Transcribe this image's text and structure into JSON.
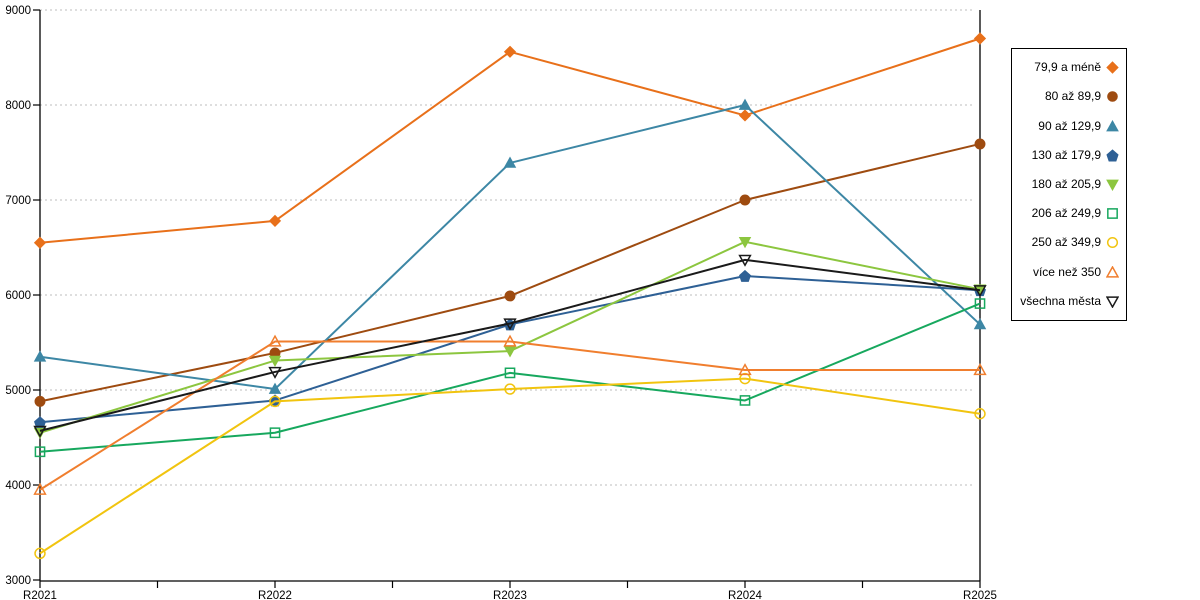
{
  "chart_data": {
    "type": "line",
    "title": "",
    "xlabel": "",
    "ylabel": "",
    "x_categories": [
      "R2021",
      "R2022",
      "R2023",
      "R2024",
      "R2025"
    ],
    "y_tick_labels": [
      "3000",
      "4000",
      "5000",
      "6000",
      "7000",
      "8000",
      "9000"
    ],
    "y_ticks": [
      3000,
      4000,
      5000,
      6000,
      7000,
      8000,
      9000
    ],
    "ylim": [
      3000,
      9000
    ],
    "grid": "horizontal-dotted",
    "legend_position": "right-outside",
    "series": [
      {
        "name": "79,9 a méně",
        "marker": "diamond",
        "filled": true,
        "color": "#E8701A",
        "values": [
          6550,
          6780,
          8560,
          7890,
          8700
        ]
      },
      {
        "name": "80 až 89,9",
        "marker": "circle",
        "filled": true,
        "color": "#9E4B10",
        "values": [
          4880,
          5390,
          5990,
          7000,
          7590
        ]
      },
      {
        "name": "90 až 129,9",
        "marker": "triangle-up",
        "filled": true,
        "color": "#3D87A5",
        "values": [
          5350,
          5010,
          7390,
          8000,
          5690
        ]
      },
      {
        "name": "130 až 179,9",
        "marker": "pentagon",
        "filled": true,
        "color": "#2E6095",
        "values": [
          4660,
          4890,
          5690,
          6200,
          6050
        ]
      },
      {
        "name": "180 až 205,9",
        "marker": "triangle-down",
        "filled": true,
        "color": "#8CC63F",
        "values": [
          4550,
          5310,
          5410,
          6560,
          6060
        ]
      },
      {
        "name": "206 až 249,9",
        "marker": "square",
        "filled": false,
        "color": "#17A85E",
        "values": [
          4350,
          4550,
          5180,
          4890,
          5910
        ]
      },
      {
        "name": "250 až 349,9",
        "marker": "circle",
        "filled": false,
        "color": "#F1C40F",
        "values": [
          3280,
          4880,
          5010,
          5120,
          4750
        ]
      },
      {
        "name": "více než 350",
        "marker": "triangle-up",
        "filled": false,
        "color": "#F07E2E",
        "values": [
          3950,
          5510,
          5510,
          5210,
          5210
        ]
      },
      {
        "name": "všechna města",
        "marker": "triangle-down",
        "filled": false,
        "color": "#1A1A1A",
        "values": [
          4570,
          5190,
          5700,
          6370,
          6050
        ]
      }
    ]
  },
  "colors": {
    "background": "#FFFFFF",
    "axis": "#000000",
    "grid": "#BEBEBE",
    "tick_text": "#000000",
    "legend_border": "#000000"
  }
}
